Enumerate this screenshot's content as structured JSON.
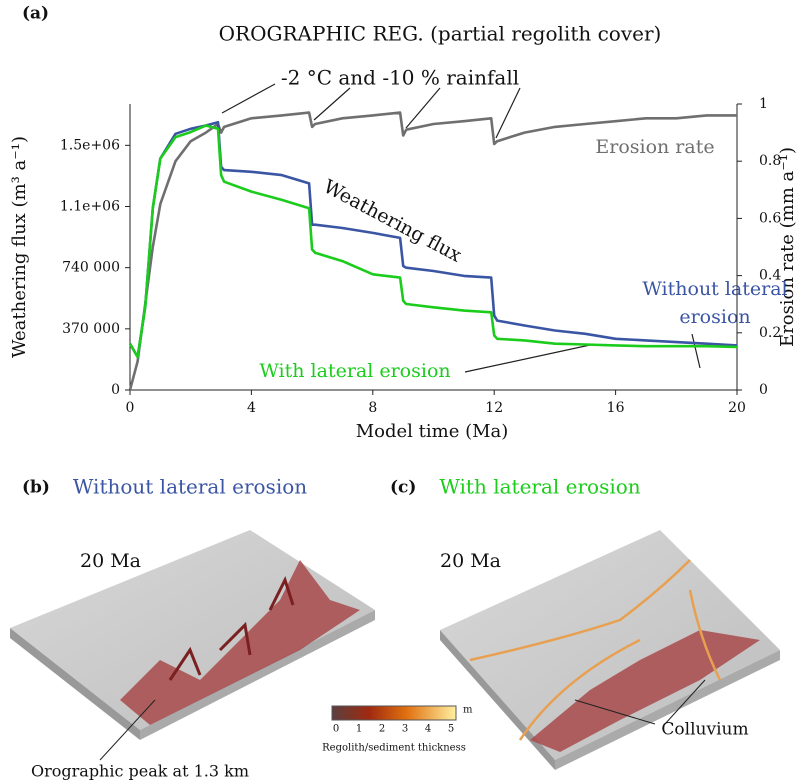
{
  "chart_data": {
    "type": "line",
    "panel_label": "(a)",
    "title": "OROGRAPHIC REG. (partial regolith cover)",
    "xlabel": "Model time (Ma)",
    "ylabel": "Weathering flux (m³ a⁻¹)",
    "y2label": "Erosion rate (mm a⁻¹)",
    "annotations": [
      "-2 °C and -10 % rainfall",
      "Weathering flux",
      "With lateral erosion",
      "Without lateral",
      "erosion"
    ],
    "x": [
      0,
      0.25,
      0.5,
      0.75,
      1,
      1.5,
      2,
      2.5,
      2.9,
      3.0,
      3.1,
      4,
      5,
      5.9,
      6.0,
      6.1,
      7,
      8,
      8.9,
      9.0,
      9.1,
      10,
      11,
      11.9,
      12.0,
      12.1,
      13,
      14,
      15,
      16,
      17,
      18,
      19,
      20
    ],
    "series": [
      {
        "name": "Erosion rate",
        "color": "#6f6f6f",
        "axis": "y2",
        "values": [
          0,
          0.1,
          0.3,
          0.5,
          0.65,
          0.8,
          0.87,
          0.9,
          0.93,
          0.9,
          0.92,
          0.95,
          0.96,
          0.97,
          0.92,
          0.93,
          0.95,
          0.96,
          0.97,
          0.89,
          0.91,
          0.93,
          0.94,
          0.95,
          0.86,
          0.87,
          0.9,
          0.92,
          0.93,
          0.94,
          0.95,
          0.95,
          0.96,
          0.96
        ]
      },
      {
        "color": "#3a55a3",
        "values": [
          280000,
          200000,
          500000,
          1100000,
          1400000,
          1550000,
          1580000,
          1600000,
          1620000,
          1350000,
          1330000,
          1320000,
          1300000,
          1250000,
          1000000,
          1000000,
          980000,
          950000,
          920000,
          750000,
          740000,
          720000,
          690000,
          680000,
          450000,
          420000,
          390000,
          360000,
          340000,
          310000,
          300000,
          290000,
          280000,
          270000
        ]
      },
      {
        "color": "#1ccc1c",
        "values": [
          280000,
          200000,
          500000,
          1100000,
          1400000,
          1530000,
          1560000,
          1600000,
          1580000,
          1300000,
          1260000,
          1200000,
          1150000,
          1100000,
          850000,
          830000,
          780000,
          700000,
          680000,
          540000,
          520000,
          500000,
          480000,
          470000,
          330000,
          310000,
          300000,
          280000,
          275000,
          270000,
          265000,
          265000,
          265000,
          260000
        ]
      }
    ],
    "xlim": [
      0,
      20
    ],
    "xticks": [
      0,
      4,
      8,
      12,
      16,
      20
    ],
    "ylim": [
      0,
      1730000
    ],
    "yticks": [
      0,
      {
        "value": 370000,
        "label": "370 000"
      },
      {
        "value": 740000,
        "label": "740 000"
      },
      {
        "value": 1110000,
        "label": "1.1e+06"
      },
      {
        "value": 1480000,
        "label": "1.5e+06"
      }
    ],
    "y2lim": [
      0,
      1
    ],
    "y2ticks": [
      0,
      0.2,
      0.4,
      0.6,
      0.8,
      1
    ]
  },
  "panels": {
    "b": {
      "label": "(b)",
      "title": "Without lateral erosion",
      "time": "20 Ma",
      "note": "Orographic peak at 1.3 km"
    },
    "c": {
      "label": "(c)",
      "title": "With lateral erosion",
      "time": "20 Ma",
      "note": "Colluvium"
    },
    "colorbar": {
      "ticks": [
        "0",
        "1",
        "2",
        "3",
        "4",
        "5"
      ],
      "unit": "m",
      "label": "Regolith/sediment thickness"
    }
  }
}
